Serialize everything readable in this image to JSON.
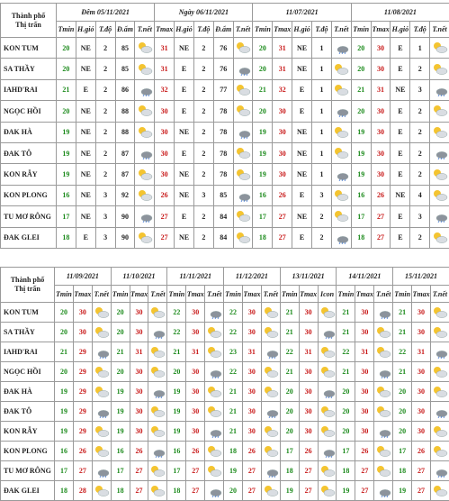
{
  "table1": {
    "city_header": [
      "Thành phố",
      "Thị trấn"
    ],
    "groups": [
      {
        "title": "Đêm 05/11/2021",
        "columns": [
          {
            "label": "Tmin",
            "color": "#1b8a1b"
          },
          {
            "label": "H.gió",
            "color": "#222222"
          },
          {
            "label": "T.độ",
            "color": "#222222"
          },
          {
            "label": "Đ.ẩm",
            "color": "#222222"
          },
          {
            "label": "T.nết",
            "color": "#222222"
          }
        ]
      },
      {
        "title": "Ngày 06/11/2021",
        "columns": [
          {
            "label": "Tmax",
            "color": "#c81818"
          },
          {
            "label": "H.gió",
            "color": "#222222"
          },
          {
            "label": "T.độ",
            "color": "#222222"
          },
          {
            "label": "Đ.ẩm",
            "color": "#222222"
          },
          {
            "label": "T.nết",
            "color": "#222222"
          }
        ]
      },
      {
        "title": "11/07/2021",
        "columns": [
          {
            "label": "Tmin",
            "color": "#1b8a1b"
          },
          {
            "label": "Tmax",
            "color": "#c81818"
          },
          {
            "label": "H.gió",
            "color": "#222222"
          },
          {
            "label": "T.độ",
            "color": "#222222"
          },
          {
            "label": "T.nết",
            "color": "#222222"
          }
        ]
      },
      {
        "title": "11/08/2021",
        "columns": [
          {
            "label": "Tmin",
            "color": "#1b8a1b"
          },
          {
            "label": "Tmax",
            "color": "#c81818"
          },
          {
            "label": "H.gió",
            "color": "#222222"
          },
          {
            "label": "T.độ",
            "color": "#222222"
          },
          {
            "label": "T.nết",
            "color": "#222222"
          }
        ]
      }
    ],
    "rows": [
      {
        "city": "KON TUM",
        "cells": [
          [
            20,
            "NE",
            2,
            85
          ],
          [
            31,
            "NE",
            2,
            76
          ],
          [
            20,
            31,
            "NE",
            1
          ],
          [
            20,
            30,
            "E",
            1
          ]
        ]
      },
      {
        "city": "SA THẦY",
        "cells": [
          [
            20,
            "NE",
            2,
            85
          ],
          [
            31,
            "E",
            2,
            76
          ],
          [
            20,
            31,
            "NE",
            1
          ],
          [
            20,
            30,
            "E",
            2
          ]
        ]
      },
      {
        "city": "IAHD'RAI",
        "cells": [
          [
            21,
            "E",
            2,
            86
          ],
          [
            32,
            "E",
            2,
            77
          ],
          [
            21,
            32,
            "E",
            1
          ],
          [
            21,
            31,
            "NE",
            3
          ]
        ]
      },
      {
        "city": "NGỌC HỒI",
        "cells": [
          [
            20,
            "NE",
            2,
            88
          ],
          [
            30,
            "E",
            2,
            78
          ],
          [
            20,
            30,
            "E",
            1
          ],
          [
            20,
            30,
            "E",
            2
          ]
        ]
      },
      {
        "city": "ĐAK HÀ",
        "cells": [
          [
            19,
            "NE",
            2,
            88
          ],
          [
            30,
            "NE",
            2,
            78
          ],
          [
            19,
            30,
            "NE",
            1
          ],
          [
            19,
            30,
            "E",
            2
          ]
        ]
      },
      {
        "city": "ĐAK TÔ",
        "cells": [
          [
            19,
            "NE",
            2,
            87
          ],
          [
            30,
            "E",
            2,
            78
          ],
          [
            19,
            30,
            "NE",
            1
          ],
          [
            19,
            30,
            "E",
            2
          ]
        ]
      },
      {
        "city": "KON RẪY",
        "cells": [
          [
            19,
            "NE",
            2,
            87
          ],
          [
            30,
            "NE",
            2,
            78
          ],
          [
            19,
            30,
            "NE",
            1
          ],
          [
            19,
            30,
            "E",
            2
          ]
        ]
      },
      {
        "city": "KON PLONG",
        "cells": [
          [
            16,
            "NE",
            3,
            92
          ],
          [
            26,
            "NE",
            3,
            85
          ],
          [
            16,
            26,
            "E",
            3
          ],
          [
            16,
            26,
            "NE",
            4
          ]
        ]
      },
      {
        "city": "TU MƠ RÔNG",
        "cells": [
          [
            17,
            "NE",
            3,
            90
          ],
          [
            27,
            "E",
            2,
            84
          ],
          [
            17,
            27,
            "NE",
            2
          ],
          [
            17,
            27,
            "E",
            3
          ]
        ]
      },
      {
        "city": "ĐAK GLEI",
        "cells": [
          [
            18,
            "E",
            3,
            90
          ],
          [
            27,
            "NE",
            2,
            84
          ],
          [
            18,
            27,
            "E",
            2
          ],
          [
            18,
            27,
            "E",
            2
          ]
        ]
      }
    ]
  },
  "table2": {
    "city_header": [
      "Thành phố",
      "Thị trấn"
    ],
    "groups": [
      {
        "title": "11/09/2021",
        "columns": [
          {
            "label": "Tmin",
            "color": "#1b8a1b"
          },
          {
            "label": "Tmax",
            "color": "#c81818"
          },
          {
            "label": "T.nết",
            "color": "#222222"
          }
        ]
      },
      {
        "title": "11/10/2021",
        "columns": [
          {
            "label": "Tmin",
            "color": "#1b8a1b"
          },
          {
            "label": "Tmax",
            "color": "#c81818"
          },
          {
            "label": "T.nết",
            "color": "#222222"
          }
        ]
      },
      {
        "title": "11/11/2021",
        "columns": [
          {
            "label": "Tmin",
            "color": "#1b8a1b"
          },
          {
            "label": "Tmax",
            "color": "#c81818"
          },
          {
            "label": "T.nết",
            "color": "#222222"
          }
        ]
      },
      {
        "title": "11/12/2021",
        "columns": [
          {
            "label": "Tmin",
            "color": "#1b8a1b"
          },
          {
            "label": "Tmax",
            "color": "#c81818"
          },
          {
            "label": "T.nết",
            "color": "#222222"
          }
        ]
      },
      {
        "title": "13/11/2021",
        "columns": [
          {
            "label": "Tmin",
            "color": "#1b8a1b"
          },
          {
            "label": "Tmax",
            "color": "#c81818"
          },
          {
            "label": "Icon",
            "color": "#222222"
          }
        ]
      },
      {
        "title": "14/11/2021",
        "columns": [
          {
            "label": "Tmin",
            "color": "#1b8a1b"
          },
          {
            "label": "Tmax",
            "color": "#c81818"
          },
          {
            "label": "T.nết",
            "color": "#222222"
          }
        ]
      },
      {
        "title": "15/11/2021",
        "columns": [
          {
            "label": "Tmin",
            "color": "#1b8a1b"
          },
          {
            "label": "Tmax",
            "color": "#c81818"
          },
          {
            "label": "T.nết",
            "color": "#222222"
          }
        ]
      }
    ],
    "rows": [
      {
        "city": "KON TUM",
        "cells": [
          [
            20,
            30
          ],
          [
            20,
            30
          ],
          [
            22,
            30
          ],
          [
            22,
            30
          ],
          [
            21,
            30
          ],
          [
            21,
            30
          ],
          [
            21,
            30
          ]
        ]
      },
      {
        "city": "SA THẦY",
        "cells": [
          [
            20,
            30
          ],
          [
            20,
            30
          ],
          [
            22,
            30
          ],
          [
            22,
            30
          ],
          [
            21,
            30
          ],
          [
            21,
            30
          ],
          [
            21,
            30
          ]
        ]
      },
      {
        "city": "IAHD'RAI",
        "cells": [
          [
            21,
            29
          ],
          [
            21,
            31
          ],
          [
            21,
            31
          ],
          [
            23,
            31
          ],
          [
            22,
            31
          ],
          [
            22,
            31
          ],
          [
            22,
            31
          ]
        ]
      },
      {
        "city": "NGỌC HỒI",
        "cells": [
          [
            20,
            29
          ],
          [
            20,
            30
          ],
          [
            20,
            30
          ],
          [
            22,
            30
          ],
          [
            21,
            30
          ],
          [
            21,
            30
          ],
          [
            21,
            30
          ]
        ]
      },
      {
        "city": "ĐAK HÀ",
        "cells": [
          [
            19,
            29
          ],
          [
            19,
            30
          ],
          [
            19,
            30
          ],
          [
            21,
            30
          ],
          [
            20,
            30
          ],
          [
            20,
            30
          ],
          [
            20,
            30
          ]
        ]
      },
      {
        "city": "ĐAK TÔ",
        "cells": [
          [
            19,
            29
          ],
          [
            19,
            30
          ],
          [
            19,
            30
          ],
          [
            21,
            30
          ],
          [
            20,
            30
          ],
          [
            20,
            30
          ],
          [
            20,
            30
          ]
        ]
      },
      {
        "city": "KON RẪY",
        "cells": [
          [
            19,
            29
          ],
          [
            19,
            30
          ],
          [
            19,
            30
          ],
          [
            21,
            30
          ],
          [
            20,
            30
          ],
          [
            20,
            30
          ],
          [
            20,
            30
          ]
        ]
      },
      {
        "city": "KON PLONG",
        "cells": [
          [
            16,
            26
          ],
          [
            16,
            26
          ],
          [
            16,
            26
          ],
          [
            18,
            26
          ],
          [
            17,
            26
          ],
          [
            17,
            26
          ],
          [
            17,
            26
          ]
        ]
      },
      {
        "city": "TU MƠ RÔNG",
        "cells": [
          [
            17,
            27
          ],
          [
            17,
            27
          ],
          [
            17,
            27
          ],
          [
            19,
            27
          ],
          [
            18,
            27
          ],
          [
            18,
            27
          ],
          [
            18,
            27
          ]
        ]
      },
      {
        "city": "ĐAK GLEI",
        "cells": [
          [
            18,
            28
          ],
          [
            18,
            27
          ],
          [
            18,
            27
          ],
          [
            20,
            27
          ],
          [
            19,
            27
          ],
          [
            19,
            27
          ],
          [
            19,
            27
          ]
        ]
      }
    ]
  }
}
